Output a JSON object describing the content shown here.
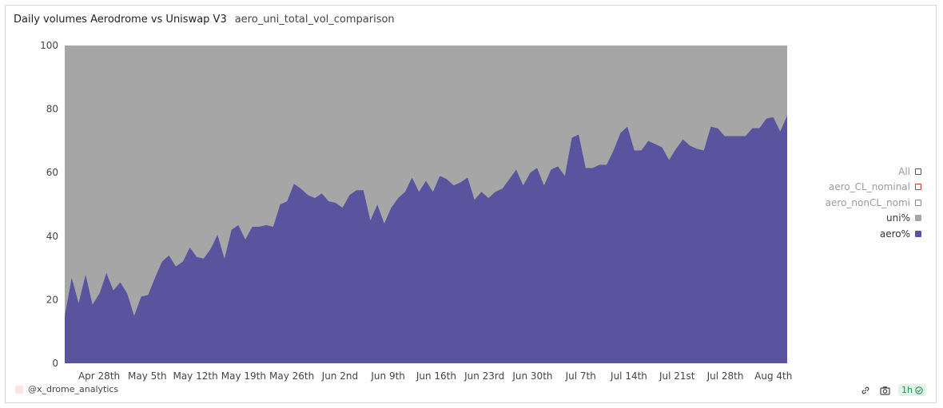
{
  "header": {
    "title": "Daily volumes Aerodrome vs Uniswap V3",
    "query_name": "aero_uni_total_vol_comparison"
  },
  "footer": {
    "author": "@x_drome_analytics",
    "refresh_badge": "1h",
    "icons": [
      "link-icon",
      "camera-icon",
      "check-circle-icon"
    ]
  },
  "legend": [
    {
      "label": "All",
      "active": false,
      "swatch": "#ffffff",
      "border": "#555555"
    },
    {
      "label": "aero_CL_nominal",
      "active": false,
      "swatch": "#ffffff",
      "border": "#c0392b"
    },
    {
      "label": "aero_nonCL_nomi",
      "active": false,
      "swatch": "#ffffff",
      "border": "#888888"
    },
    {
      "label": "uni%",
      "active": true,
      "swatch": "#a6a6a6",
      "border": "#a6a6a6"
    },
    {
      "label": "aero%",
      "active": true,
      "swatch": "#5a539e",
      "border": "#5a539e"
    }
  ],
  "colors": {
    "uni": "#a6a6a6",
    "aero": "#5a539e"
  },
  "chart_data": {
    "type": "area",
    "stacked": true,
    "percent_stacked": true,
    "xlabel": "",
    "ylabel": "",
    "ylim": [
      0,
      100
    ],
    "yticks": [
      0,
      20,
      40,
      60,
      80,
      100
    ],
    "x_start": "2024-04-23",
    "x_end": "2024-08-06",
    "xtick_labels": [
      "Apr 28th",
      "May 5th",
      "May 12th",
      "May 19th",
      "May 26th",
      "Jun 2nd",
      "Jun 9th",
      "Jun 16th",
      "Jun 23rd",
      "Jun 30th",
      "Jul 7th",
      "Jul 14th",
      "Jul 21st",
      "Jul 28th",
      "Aug 4th"
    ],
    "grid": false,
    "legend_position": "right",
    "series": [
      {
        "name": "aero%",
        "values": [
          15,
          27,
          19,
          28,
          18.5,
          22,
          28.5,
          23,
          25.5,
          22,
          15,
          21,
          21.5,
          27,
          32,
          34,
          30.5,
          32,
          36.5,
          33.5,
          33,
          36,
          40.5,
          33,
          42,
          43.5,
          39,
          43,
          43,
          43.5,
          43,
          50,
          51,
          56.5,
          55,
          53,
          52,
          53.5,
          51,
          50.5,
          49,
          53,
          54.5,
          54.5,
          45,
          50,
          44,
          49,
          52,
          54,
          58.5,
          54,
          57.5,
          54,
          59,
          58,
          56,
          57,
          58.5,
          51.5,
          54,
          52,
          54,
          55,
          58,
          61,
          56,
          60,
          61.5,
          56,
          61,
          62,
          59,
          71,
          72,
          61.5,
          61.5,
          62.5,
          62.5,
          67,
          72.5,
          74.5,
          67,
          67,
          70,
          69,
          68,
          64,
          67.5,
          70.5,
          68.5,
          67.5,
          67,
          74.5,
          74,
          71.5,
          71.5,
          71.5,
          71.5,
          74,
          74,
          77,
          77.5,
          73,
          78
        ]
      },
      {
        "name": "uni%",
        "values": [
          85,
          73,
          81,
          72,
          81.5,
          78,
          71.5,
          77,
          74.5,
          78,
          85,
          79,
          78.5,
          73,
          68,
          66,
          69.5,
          68,
          63.5,
          66.5,
          67,
          64,
          59.5,
          67,
          58,
          56.5,
          61,
          57,
          57,
          56.5,
          57,
          50,
          49,
          43.5,
          45,
          47,
          48,
          46.5,
          49,
          49.5,
          51,
          47,
          45.5,
          45.5,
          55,
          50,
          56,
          51,
          48,
          46,
          41.5,
          46,
          42.5,
          46,
          41,
          42,
          44,
          43,
          41.5,
          48.5,
          46,
          48,
          46,
          45,
          42,
          39,
          44,
          40,
          38.5,
          44,
          39,
          38,
          41,
          29,
          28,
          38.5,
          38.5,
          37.5,
          37.5,
          33,
          27.5,
          25.5,
          33,
          33,
          30,
          31,
          32,
          36,
          32.5,
          29.5,
          31.5,
          32.5,
          33,
          25.5,
          26,
          28.5,
          28.5,
          28.5,
          28.5,
          26,
          26,
          23,
          22.5,
          27,
          22
        ]
      }
    ]
  }
}
